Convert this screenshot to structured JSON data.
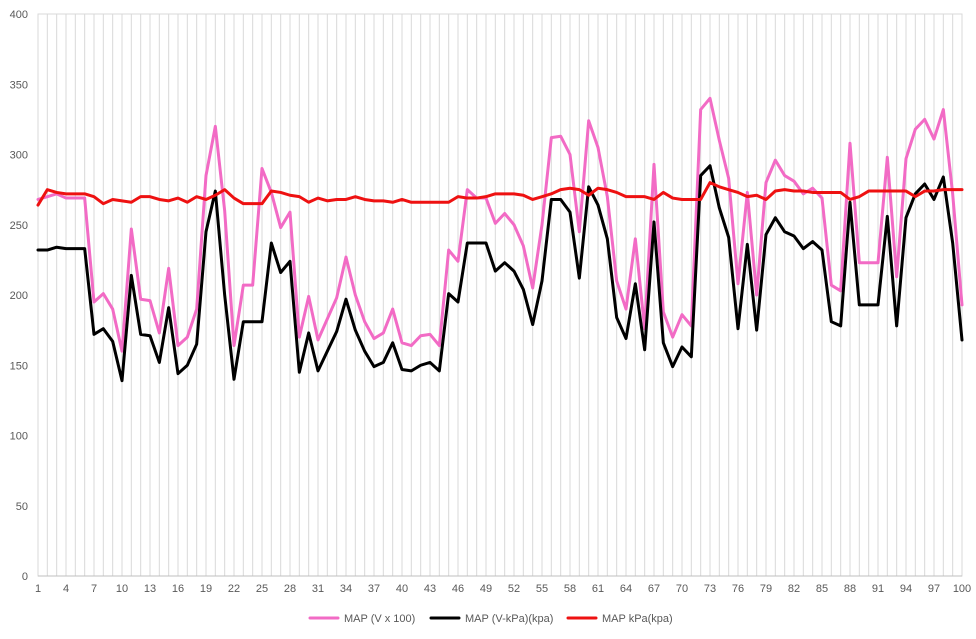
{
  "chart_data": {
    "type": "line",
    "title": "",
    "xlabel": "",
    "ylabel": "",
    "ylim": [
      0,
      400
    ],
    "yticks": [
      0,
      50,
      100,
      150,
      200,
      250,
      300,
      350,
      400
    ],
    "xticks": [
      1,
      4,
      7,
      10,
      13,
      16,
      19,
      22,
      25,
      28,
      31,
      34,
      37,
      40,
      43,
      46,
      49,
      52,
      55,
      58,
      61,
      64,
      67,
      70,
      73,
      76,
      79,
      82,
      85,
      88,
      91,
      94,
      97,
      100
    ],
    "x": [
      1,
      2,
      3,
      4,
      5,
      6,
      7,
      8,
      9,
      10,
      11,
      12,
      13,
      14,
      15,
      16,
      17,
      18,
      19,
      20,
      21,
      22,
      23,
      24,
      25,
      26,
      27,
      28,
      29,
      30,
      31,
      32,
      33,
      34,
      35,
      36,
      37,
      38,
      39,
      40,
      41,
      42,
      43,
      44,
      45,
      46,
      47,
      48,
      49,
      50,
      51,
      52,
      53,
      54,
      55,
      56,
      57,
      58,
      59,
      60,
      61,
      62,
      63,
      64,
      65,
      66,
      67,
      68,
      69,
      70,
      71,
      72,
      73,
      74,
      75,
      76,
      77,
      78,
      79,
      80,
      81,
      82,
      83,
      84,
      85,
      86,
      87,
      88,
      89,
      90,
      91,
      92,
      93,
      94,
      95,
      96,
      97,
      98,
      99,
      100
    ],
    "grid": "vertical",
    "legend_position": "bottom",
    "series": [
      {
        "name": "MAP (V x 100)",
        "color": "#f26bc5",
        "values": [
          268,
          270,
          272,
          269,
          269,
          269,
          195,
          201,
          190,
          160,
          247,
          197,
          196,
          173,
          219,
          164,
          170,
          190,
          285,
          320,
          260,
          164,
          207,
          207,
          290,
          273,
          248,
          259,
          170,
          199,
          168,
          183,
          198,
          227,
          200,
          181,
          169,
          173,
          190,
          166,
          164,
          171,
          172,
          164,
          232,
          224,
          275,
          269,
          269,
          251,
          258,
          250,
          235,
          205,
          250,
          312,
          313,
          300,
          245,
          324,
          305,
          270,
          210,
          190,
          240,
          176,
          293,
          188,
          170,
          186,
          178,
          332,
          340,
          310,
          283,
          208,
          273,
          200,
          280,
          296,
          285,
          281,
          272,
          276,
          269,
          207,
          203,
          308,
          223,
          223,
          223,
          298,
          213,
          297,
          318,
          325,
          311,
          332,
          272,
          193
        ]
      },
      {
        "name": "MAP (V-kPa)(kpa)",
        "color": "#000000",
        "values": [
          232,
          232,
          234,
          233,
          233,
          233,
          172,
          176,
          167,
          139,
          214,
          172,
          171,
          152,
          191,
          144,
          150,
          165,
          245,
          274,
          200,
          140,
          181,
          181,
          181,
          237,
          216,
          224,
          145,
          173,
          146,
          160,
          174,
          197,
          175,
          160,
          149,
          152,
          166,
          147,
          146,
          150,
          152,
          146,
          201,
          195,
          237,
          237,
          237,
          217,
          223,
          217,
          204,
          179,
          210,
          268,
          268,
          259,
          212,
          277,
          264,
          240,
          184,
          169,
          208,
          161,
          252,
          166,
          149,
          163,
          156,
          285,
          292,
          262,
          241,
          176,
          236,
          175,
          243,
          255,
          245,
          242,
          233,
          238,
          232,
          181,
          178,
          266,
          193,
          193,
          193,
          256,
          178,
          255,
          272,
          279,
          268,
          284,
          237,
          168
        ]
      },
      {
        "name": "MAP kPa(kpa)",
        "color": "#ee1111",
        "values": [
          264,
          275,
          273,
          272,
          272,
          272,
          270,
          265,
          268,
          267,
          266,
          270,
          270,
          268,
          267,
          269,
          266,
          270,
          268,
          271,
          275,
          269,
          265,
          265,
          265,
          274,
          273,
          271,
          270,
          266,
          269,
          267,
          268,
          268,
          270,
          268,
          267,
          267,
          266,
          268,
          266,
          266,
          266,
          266,
          266,
          270,
          269,
          269,
          270,
          272,
          272,
          272,
          271,
          268,
          270,
          272,
          275,
          276,
          275,
          271,
          276,
          275,
          273,
          270,
          270,
          270,
          268,
          273,
          269,
          268,
          268,
          268,
          280,
          277,
          275,
          273,
          270,
          271,
          268,
          274,
          275,
          274,
          274,
          273,
          273,
          273,
          273,
          268,
          270,
          274,
          274,
          274,
          274,
          274,
          270,
          274,
          274,
          275,
          275,
          275
        ]
      }
    ]
  }
}
